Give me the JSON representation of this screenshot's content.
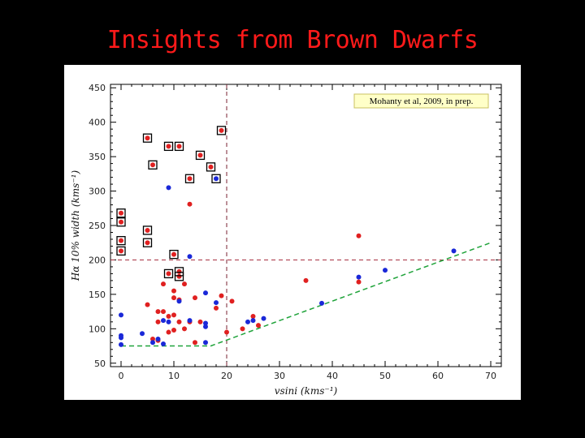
{
  "slide": {
    "title": "Insights from Brown Dwarfs"
  },
  "chart_data": {
    "type": "scatter",
    "title": "",
    "xlabel": "vsini (kms⁻¹)",
    "ylabel": "Hα 10% width (kms⁻¹)",
    "xlim": [
      -2,
      72
    ],
    "ylim": [
      45,
      455
    ],
    "x_ticks": [
      0,
      10,
      20,
      30,
      40,
      50,
      60,
      70
    ],
    "y_ticks": [
      50,
      100,
      150,
      200,
      250,
      300,
      350,
      400,
      450
    ],
    "grid": false,
    "annotation": "Mohanty et al, 2009, in prep.",
    "colors": {
      "red": "#e02020",
      "blue": "#1a28d8",
      "box": "#000000",
      "vline": "#7a2030",
      "hline": "#a83040",
      "threshold": "#1fa33a"
    },
    "reference_lines": {
      "vsini_x": 20,
      "width_y": 200
    },
    "threshold_curve": {
      "x": [
        0,
        17,
        70
      ],
      "y": [
        75,
        75,
        225
      ]
    },
    "series": [
      {
        "color": "red",
        "points": [
          [
            0,
            268
          ],
          [
            0,
            255
          ],
          [
            0,
            228
          ],
          [
            0,
            213
          ],
          [
            5,
            377
          ],
          [
            6,
            338
          ],
          [
            9,
            365
          ],
          [
            11,
            365
          ],
          [
            13,
            318
          ],
          [
            15,
            352
          ],
          [
            17,
            335
          ],
          [
            19,
            388
          ],
          [
            5,
            243
          ],
          [
            5,
            225
          ],
          [
            10,
            208
          ],
          [
            9,
            180
          ],
          [
            11,
            183
          ],
          [
            11,
            176
          ],
          [
            13,
            281
          ],
          [
            10,
            155
          ],
          [
            8,
            165
          ],
          [
            12,
            165
          ],
          [
            10,
            145
          ],
          [
            11,
            142
          ],
          [
            14,
            145
          ],
          [
            5,
            135
          ],
          [
            7,
            125
          ],
          [
            8,
            125
          ],
          [
            9,
            118
          ],
          [
            10,
            120
          ],
          [
            11,
            110
          ],
          [
            13,
            110
          ],
          [
            7,
            110
          ],
          [
            10,
            98
          ],
          [
            12,
            100
          ],
          [
            15,
            110
          ],
          [
            18,
            130
          ],
          [
            19,
            148
          ],
          [
            21,
            140
          ],
          [
            23,
            100
          ],
          [
            26,
            105
          ],
          [
            20,
            95
          ],
          [
            14,
            80
          ],
          [
            6,
            85
          ],
          [
            7,
            83
          ],
          [
            9,
            95
          ],
          [
            25,
            118
          ],
          [
            35,
            170
          ],
          [
            45,
            235
          ],
          [
            45,
            168
          ]
        ]
      },
      {
        "color": "blue",
        "points": [
          [
            0,
            120
          ],
          [
            0,
            90
          ],
          [
            0,
            87
          ],
          [
            0,
            77
          ],
          [
            6,
            80
          ],
          [
            7,
            85
          ],
          [
            9,
            305
          ],
          [
            13,
            205
          ],
          [
            18,
            318
          ],
          [
            16,
            152
          ],
          [
            11,
            140
          ],
          [
            8,
            112
          ],
          [
            9,
            110
          ],
          [
            13,
            112
          ],
          [
            16,
            108
          ],
          [
            16,
            103
          ],
          [
            16,
            80
          ],
          [
            18,
            138
          ],
          [
            24,
            110
          ],
          [
            25,
            112
          ],
          [
            27,
            115
          ],
          [
            38,
            137
          ],
          [
            45,
            175
          ],
          [
            50,
            185
          ],
          [
            63,
            213
          ],
          [
            4,
            93
          ],
          [
            8,
            78
          ]
        ]
      }
    ],
    "boxed_points": [
      [
        0,
        268
      ],
      [
        0,
        255
      ],
      [
        0,
        228
      ],
      [
        0,
        213
      ],
      [
        5,
        377
      ],
      [
        6,
        338
      ],
      [
        9,
        365
      ],
      [
        11,
        365
      ],
      [
        13,
        318
      ],
      [
        15,
        352
      ],
      [
        17,
        335
      ],
      [
        19,
        388
      ],
      [
        5,
        243
      ],
      [
        5,
        225
      ],
      [
        10,
        208
      ],
      [
        9,
        180
      ],
      [
        11,
        183
      ],
      [
        11,
        176
      ],
      [
        18,
        318
      ]
    ]
  }
}
